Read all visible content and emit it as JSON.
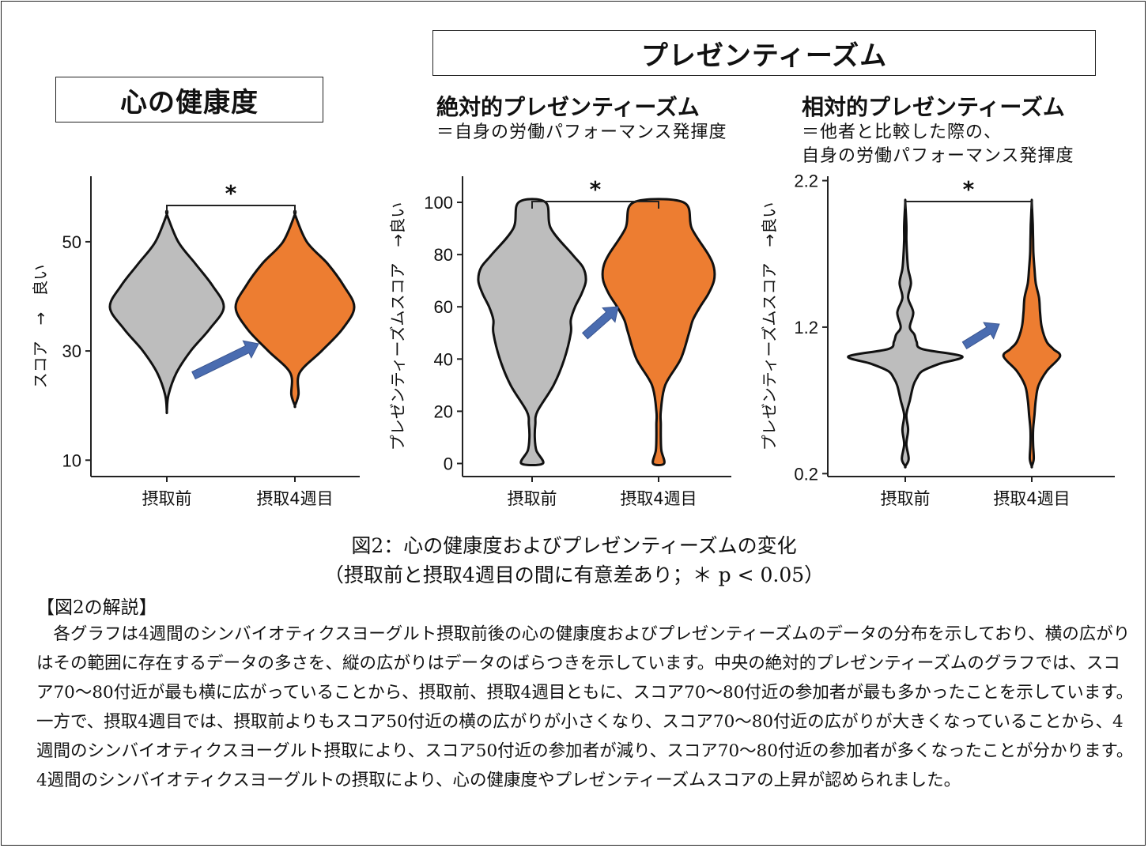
{
  "panel_headers": {
    "left_box": "心の健康度",
    "right_box": "プレゼンティーズム",
    "abs_title": "絶対的プレゼンティーズム",
    "abs_desc": "＝自身の労働パフォーマンス発揮度",
    "rel_title": "相対的プレゼンティーズム",
    "rel_desc1": "＝他者と比較した際の、",
    "rel_desc2": "自身の労働パフォーマンス発揮度"
  },
  "colors": {
    "before": "#bdbdbd",
    "after": "#ed7d31",
    "arrow": "#4a6cb0",
    "outline": "#111111"
  },
  "chart_data": [
    {
      "type": "violin",
      "ylabel": "スコア　→　良い",
      "categories": [
        "摂取前",
        "摂取4週目"
      ],
      "ylim": [
        7,
        62
      ],
      "yticks": [
        10,
        30,
        50
      ],
      "significance": "*",
      "series": [
        {
          "category": "摂取前",
          "y": [
            19,
            22,
            26,
            30,
            34,
            38,
            42,
            46,
            50,
            55
          ],
          "width": [
            0.0,
            0.03,
            0.17,
            0.42,
            0.75,
            1.0,
            0.8,
            0.5,
            0.2,
            0.0
          ]
        },
        {
          "category": "摂取4週目",
          "y": [
            20,
            22,
            26,
            30,
            34,
            38,
            42,
            46,
            50,
            55
          ],
          "width": [
            0.0,
            0.06,
            0.08,
            0.45,
            0.8,
            1.0,
            0.82,
            0.55,
            0.2,
            0.0
          ]
        }
      ]
    },
    {
      "type": "violin",
      "ylabel": "プレゼンティーズムスコア　→良い",
      "categories": [
        "摂取前",
        "摂取4週目"
      ],
      "ylim": [
        -5,
        110
      ],
      "yticks": [
        0,
        20,
        40,
        60,
        80,
        100
      ],
      "significance": "*",
      "series": [
        {
          "category": "摂取前",
          "y": [
            0,
            5,
            10,
            15,
            20,
            30,
            40,
            50,
            55,
            60,
            65,
            70,
            75,
            80,
            90,
            100
          ],
          "width": [
            0.2,
            0.08,
            0.05,
            0.06,
            0.1,
            0.4,
            0.6,
            0.72,
            0.72,
            0.8,
            0.92,
            1.0,
            0.95,
            0.75,
            0.35,
            0.25
          ]
        },
        {
          "category": "摂取4週目",
          "y": [
            0,
            5,
            10,
            15,
            20,
            30,
            40,
            50,
            55,
            60,
            65,
            70,
            75,
            80,
            90,
            100
          ],
          "width": [
            0.1,
            0.05,
            0.04,
            0.04,
            0.04,
            0.12,
            0.4,
            0.55,
            0.62,
            0.75,
            0.9,
            1.0,
            1.0,
            0.9,
            0.6,
            0.45
          ]
        }
      ]
    },
    {
      "type": "violin",
      "ylabel": "プレゼンティーズムスコア　→良い",
      "categories": [
        "摂取前",
        "摂取4週目"
      ],
      "ylim": [
        0.18,
        2.23
      ],
      "yticks": [
        0.2,
        1.2,
        2.2
      ],
      "significance": "*",
      "series": [
        {
          "category": "摂取前",
          "y": [
            0.25,
            0.3,
            0.4,
            0.5,
            0.6,
            0.7,
            0.8,
            0.85,
            0.9,
            0.95,
            1.0,
            1.05,
            1.1,
            1.15,
            1.2,
            1.3,
            1.4,
            1.5,
            1.6,
            1.7,
            1.8,
            1.9,
            2.05
          ],
          "width": [
            0.0,
            0.06,
            0.02,
            0.05,
            0.02,
            0.08,
            0.14,
            0.2,
            0.3,
            0.6,
            1.0,
            0.3,
            0.2,
            0.16,
            0.08,
            0.14,
            0.05,
            0.1,
            0.05,
            0.03,
            0.02,
            0.02,
            0.0
          ]
        },
        {
          "category": "摂取4週目",
          "y": [
            0.25,
            0.3,
            0.4,
            0.5,
            0.6,
            0.7,
            0.8,
            0.9,
            1.0,
            1.05,
            1.1,
            1.2,
            1.3,
            1.4,
            1.5,
            1.6,
            1.7,
            1.8,
            1.9,
            2.05
          ],
          "width": [
            0.0,
            0.06,
            0.04,
            0.04,
            0.08,
            0.12,
            0.2,
            0.45,
            0.85,
            0.65,
            0.45,
            0.3,
            0.25,
            0.22,
            0.12,
            0.08,
            0.05,
            0.04,
            0.03,
            0.0
          ]
        }
      ]
    }
  ],
  "caption": {
    "line1": "図2：心の健康度およびプレゼンティーズムの変化",
    "line2": "（摂取前と摂取4週目の間に有意差あり；＊ p < 0.05）"
  },
  "explanation": {
    "heading": "【図2の解説】",
    "body": "各グラフは4週間のシンバイオティクスヨーグルト摂取前後の心の健康度およびプレゼンティーズムのデータの分布を示しており、横の広がりはその範囲に存在するデータの多さを、縦の広がりはデータのばらつきを示しています。中央の絶対的プレゼンティーズムのグラフでは、スコア70～80付近が最も横に広がっていることから、摂取前、摂取4週目ともに、スコア70～80付近の参加者が最も多かったことを示しています。一方で、摂取4週目では、摂取前よりもスコア50付近の横の広がりが小さくなり、スコア70～80付近の広がりが大きくなっていることから、4週間のシンバイオティクスヨーグルト摂取により、スコア50付近の参加者が減り、スコア70～80付近の参加者が多くなったことが分かります。4週間のシンバイオティクスヨーグルトの摂取により、心の健康度やプレゼンティーズムスコアの上昇が認められました。"
  }
}
